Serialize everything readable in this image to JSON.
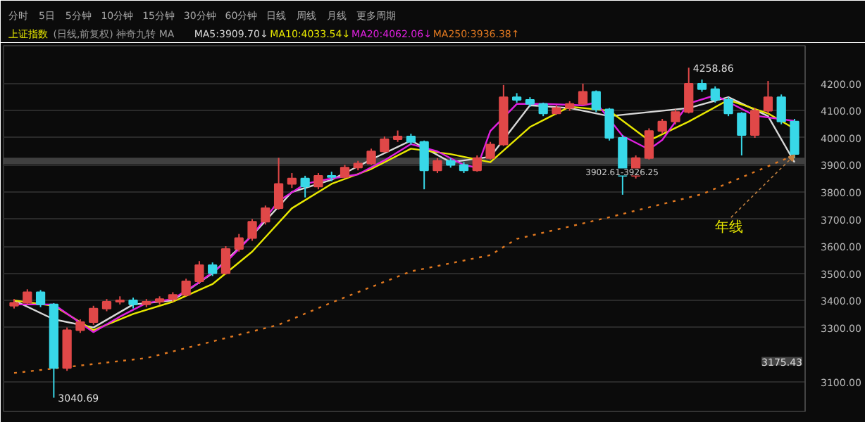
{
  "chart_data": {
    "type": "candlestick",
    "title": "上证指数",
    "subtitle": "(日线,前复权)  神奇九转  MA",
    "categories": [
      null,
      null,
      null,
      null,
      null,
      null,
      null,
      null,
      null,
      null,
      null,
      null,
      null,
      null,
      null,
      null,
      null,
      null,
      null,
      null,
      null,
      null,
      null,
      null,
      null,
      null,
      null,
      null,
      null,
      null,
      null,
      null,
      null,
      null,
      null,
      null,
      null,
      null,
      null,
      null,
      null,
      null,
      null,
      null,
      null,
      null,
      null,
      null,
      null,
      null,
      null,
      null,
      null,
      null,
      null,
      null,
      null,
      null,
      null,
      null
    ],
    "ohlc": [
      [
        3380,
        3405,
        3370,
        3391
      ],
      [
        3391,
        3441,
        3385,
        3430
      ],
      [
        3430,
        3438,
        3375,
        3385
      ],
      [
        3385,
        3390,
        3040.69,
        3150
      ],
      [
        3150,
        3300,
        3140,
        3290
      ],
      [
        3290,
        3330,
        3280,
        3320
      ],
      [
        3320,
        3380,
        3310,
        3370
      ],
      [
        3370,
        3405,
        3360,
        3395
      ],
      [
        3395,
        3415,
        3385,
        3400
      ],
      [
        3400,
        3410,
        3370,
        3385
      ],
      [
        3385,
        3405,
        3375,
        3395
      ],
      [
        3395,
        3415,
        3385,
        3405
      ],
      [
        3405,
        3430,
        3395,
        3420
      ],
      [
        3420,
        3480,
        3415,
        3470
      ],
      [
        3470,
        3545,
        3460,
        3530
      ],
      [
        3530,
        3540,
        3490,
        3500
      ],
      [
        3500,
        3600,
        3495,
        3590
      ],
      [
        3590,
        3645,
        3580,
        3630
      ],
      [
        3630,
        3700,
        3620,
        3690
      ],
      [
        3690,
        3750,
        3680,
        3740
      ],
      [
        3740,
        3926,
        3735,
        3830
      ],
      [
        3830,
        3870,
        3815,
        3850
      ],
      [
        3850,
        3860,
        3780,
        3820
      ],
      [
        3820,
        3870,
        3810,
        3860
      ],
      [
        3860,
        3875,
        3840,
        3855
      ],
      [
        3855,
        3900,
        3850,
        3890
      ],
      [
        3890,
        3915,
        3880,
        3905
      ],
      [
        3905,
        3960,
        3900,
        3950
      ],
      [
        3950,
        4005,
        3945,
        3995
      ],
      [
        3995,
        4027,
        3985,
        4005
      ],
      [
        4005,
        4015,
        3975,
        3985
      ],
      [
        3985,
        3990,
        3810,
        3880
      ],
      [
        3880,
        3925,
        3870,
        3915
      ],
      [
        3915,
        3925,
        3890,
        3900
      ],
      [
        3900,
        3910,
        3870,
        3880
      ],
      [
        3880,
        3935,
        3875,
        3925
      ],
      [
        3925,
        3985,
        3920,
        3975
      ],
      [
        3975,
        4195,
        3970,
        4150
      ],
      [
        4150,
        4165,
        4130,
        4140
      ],
      [
        4140,
        4150,
        4115,
        4125
      ],
      [
        4125,
        4130,
        4080,
        4090
      ],
      [
        4090,
        4120,
        4085,
        4110
      ],
      [
        4110,
        4135,
        4100,
        4125
      ],
      [
        4125,
        4200,
        4120,
        4170
      ],
      [
        4170,
        4175,
        4095,
        4105
      ],
      [
        4105,
        4110,
        3990,
        4000
      ],
      [
        4000,
        4010,
        3790,
        3860
      ],
      [
        3860,
        3935,
        3850,
        3925
      ],
      [
        3925,
        4035,
        3920,
        4025
      ],
      [
        4025,
        4070,
        4015,
        4060
      ],
      [
        4060,
        4105,
        4050,
        4095
      ],
      [
        4095,
        4258.86,
        4090,
        4200
      ],
      [
        4200,
        4215,
        4170,
        4180
      ],
      [
        4180,
        4190,
        4130,
        4140
      ],
      [
        4140,
        4150,
        4080,
        4090
      ],
      [
        4090,
        4095,
        3935,
        4010
      ],
      [
        4010,
        4110,
        4000,
        4100
      ],
      [
        4100,
        4210,
        4090,
        4150
      ],
      [
        4150,
        4160,
        4050,
        4060
      ],
      [
        4060,
        4070,
        3925,
        3940
      ]
    ],
    "colors": [
      "#e04848",
      "#e04848",
      "#38d8e8",
      "#38d8e8",
      "#e04848",
      "#e04848",
      "#e04848",
      "#e04848",
      "#e04848",
      "#38d8e8",
      "#e04848",
      "#e04848",
      "#e04848",
      "#e04848",
      "#e04848",
      "#38d8e8",
      "#e04848",
      "#e04848",
      "#e04848",
      "#e04848",
      "#e04848",
      "#e04848",
      "#38d8e8",
      "#e04848",
      "#38d8e8",
      "#e04848",
      "#e04848",
      "#e04848",
      "#e04848",
      "#e04848",
      "#38d8e8",
      "#38d8e8",
      "#e04848",
      "#38d8e8",
      "#38d8e8",
      "#e04848",
      "#e04848",
      "#e04848",
      "#38d8e8",
      "#38d8e8",
      "#38d8e8",
      "#e04848",
      "#e04848",
      "#e04848",
      "#38d8e8",
      "#38d8e8",
      "#38d8e8",
      "#e04848",
      "#e04848",
      "#e04848",
      "#e04848",
      "#e04848",
      "#38d8e8",
      "#38d8e8",
      "#38d8e8",
      "#38d8e8",
      "#e04848",
      "#e04848",
      "#38d8e8",
      "#38d8e8"
    ],
    "series": [
      {
        "name": "MA5:3909.70↓",
        "type": "line",
        "color": "#d8d8d8",
        "values": [
          3400,
          null,
          null,
          3330,
          null,
          null,
          3300,
          null,
          null,
          3385,
          null,
          null,
          3400,
          null,
          null,
          3500,
          null,
          null,
          3640,
          null,
          null,
          3800,
          null,
          null,
          3845,
          null,
          null,
          3920,
          null,
          null,
          3990,
          null,
          null,
          3910,
          null,
          null,
          3930,
          null,
          null,
          4120,
          null,
          null,
          4110,
          null,
          null,
          4080,
          null,
          null,
          null,
          null,
          null,
          4110,
          null,
          null,
          4150,
          null,
          null,
          4080,
          null,
          3909.7
        ]
      },
      {
        "name": "MA10:4033.54↓",
        "type": "line",
        "color": "#e8e800",
        "values": [
          3400,
          null,
          null,
          3380,
          null,
          null,
          3290,
          null,
          null,
          3350,
          null,
          null,
          3395,
          null,
          null,
          3460,
          null,
          null,
          3580,
          null,
          null,
          3740,
          null,
          null,
          3830,
          null,
          null,
          3885,
          null,
          null,
          3960,
          null,
          null,
          3940,
          null,
          null,
          3910,
          null,
          null,
          4040,
          null,
          null,
          4115,
          null,
          null,
          4100,
          null,
          null,
          3990,
          null,
          null,
          4060,
          null,
          null,
          4140,
          null,
          null,
          4090,
          null,
          4033.54
        ]
      },
      {
        "name": "MA20:4062.06↓",
        "type": "line",
        "color": "#e020e0",
        "values": [
          3385,
          null,
          null,
          3385,
          null,
          null,
          3283,
          null,
          3340,
          null,
          3390,
          null,
          3405,
          null,
          3467,
          null,
          3540,
          null,
          3640,
          null,
          3767,
          null,
          3830,
          null,
          3850,
          null,
          3865,
          null,
          3917,
          null,
          3977,
          null,
          3950,
          null,
          3900,
          3890,
          4025,
          null,
          4125,
          null,
          4125,
          null,
          null,
          4120,
          4130,
          null,
          4007,
          null,
          3957,
          3992,
          null,
          4127,
          null,
          4157,
          null,
          4107,
          4082,
          null,
          null,
          4062.06
        ]
      },
      {
        "name": "MA250:3936.38↑",
        "type": "line",
        "color": "#e07820",
        "line_style": "dotted",
        "values": [
          3132,
          null,
          null,
          null,
          null,
          null,
          null,
          null,
          null,
          null,
          3187,
          null,
          null,
          null,
          null,
          null,
          null,
          null,
          null,
          null,
          3310,
          null,
          null,
          null,
          3392,
          null,
          null,
          null,
          null,
          null,
          3507,
          null,
          null,
          null,
          null,
          null,
          3567,
          null,
          3627,
          null,
          null,
          null,
          null,
          null,
          null,
          3707,
          null,
          null,
          null,
          null,
          null,
          null,
          3792,
          null,
          null,
          null,
          null,
          null,
          null,
          3936.38
        ]
      }
    ],
    "ylim": [
      2990,
      4340
    ],
    "yticks": [
      {
        "value": 3100,
        "label": "3100.00"
      },
      {
        "value": 3300,
        "label": "3300.00"
      },
      {
        "value": 3400,
        "label": "3400.00"
      },
      {
        "value": 3500,
        "label": "3500.00"
      },
      {
        "value": 3600,
        "label": "3600.00"
      },
      {
        "value": 3700,
        "label": "3700.00"
      },
      {
        "value": 3800,
        "label": "3800.00"
      },
      {
        "value": 3900,
        "label": "3900.00"
      },
      {
        "value": 4000,
        "label": "4000.00"
      },
      {
        "value": 4100,
        "label": "4100.00"
      },
      {
        "value": 4200,
        "label": "4200.00"
      }
    ],
    "bands": [
      {
        "axis": "y",
        "from": 3902.61,
        "to": 3926.25,
        "label": "3902.61-3926.25",
        "color": "#808080"
      }
    ],
    "annotations": [
      "分时",
      "5日",
      "5分钟",
      "10分钟",
      "15分钟",
      "30分钟",
      "60分钟",
      "日线",
      "周线",
      "月线",
      "更多周期",
      "4258.86",
      "3040.69",
      "年线",
      "3175.43"
    ],
    "grid": "y",
    "legend": "top left",
    "tick_labels": "y"
  }
}
